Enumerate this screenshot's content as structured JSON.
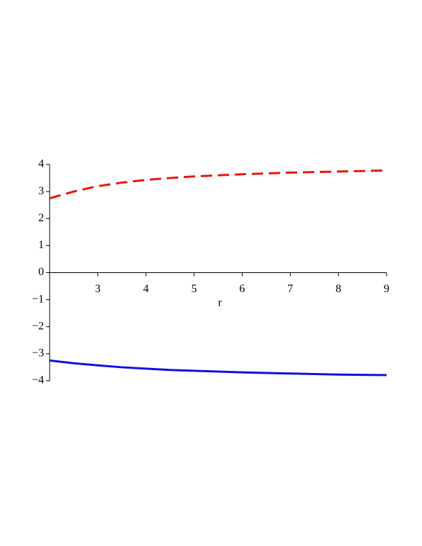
{
  "chart_data": {
    "type": "line",
    "xlabel": "r",
    "x": [
      2,
      2.5,
      3,
      3.5,
      4,
      4.5,
      5,
      5.5,
      6,
      6.5,
      7,
      7.5,
      8,
      8.5,
      9
    ],
    "series": [
      {
        "color": "#e8160f",
        "dash": true,
        "values": [
          2.75,
          3.0,
          3.2,
          3.33,
          3.43,
          3.5,
          3.56,
          3.6,
          3.64,
          3.67,
          3.7,
          3.72,
          3.74,
          3.76,
          3.78
        ]
      },
      {
        "color": "#1010e0",
        "dash": false,
        "values": [
          -3.25,
          -3.35,
          -3.43,
          -3.5,
          -3.55,
          -3.6,
          -3.63,
          -3.66,
          -3.69,
          -3.71,
          -3.73,
          -3.75,
          -3.77,
          -3.78,
          -3.79
        ]
      }
    ],
    "xlim": [
      2,
      9
    ],
    "xticks": [
      3,
      4,
      5,
      6,
      7,
      8,
      9
    ],
    "ylim": [
      -4,
      4
    ],
    "yticks": [
      {
        "value": -4,
        "label": "−4"
      },
      {
        "value": -3,
        "label": "−3"
      },
      {
        "value": -2,
        "label": "−2"
      },
      {
        "value": -1,
        "label": "−1"
      },
      0,
      1,
      2,
      3,
      4
    ]
  }
}
